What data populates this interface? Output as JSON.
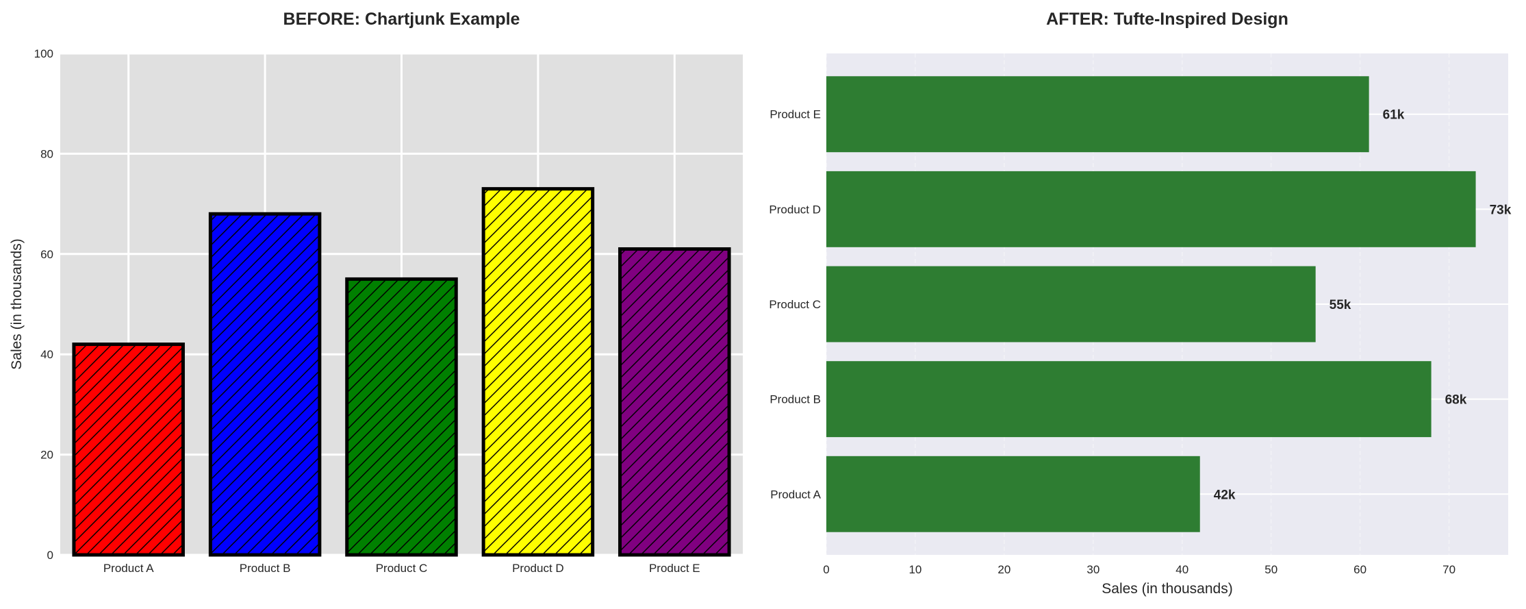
{
  "chart_data": [
    {
      "type": "bar",
      "title": "BEFORE: Chartjunk Example",
      "categories": [
        "Product A",
        "Product B",
        "Product C",
        "Product D",
        "Product E"
      ],
      "values": [
        42,
        68,
        55,
        73,
        61
      ],
      "colors": [
        "#ff0000",
        "#0000ff",
        "#008000",
        "#ffff00",
        "#800080"
      ],
      "edge_color": "#000000",
      "hatch": "diagonal",
      "xlabel": "",
      "ylabel": "Sales (in thousands)",
      "ylim": [
        0,
        100
      ],
      "yticks": [
        0,
        20,
        40,
        60,
        80,
        100
      ],
      "grid": true,
      "background": "#e0e0e0"
    },
    {
      "type": "bar",
      "orientation": "horizontal",
      "title": "AFTER: Tufte-Inspired Design",
      "categories": [
        "Product A",
        "Product B",
        "Product C",
        "Product D",
        "Product E"
      ],
      "values": [
        42,
        68,
        55,
        73,
        61
      ],
      "data_labels": [
        "42k",
        "68k",
        "55k",
        "73k",
        "61k"
      ],
      "color": "#2e7d32",
      "xlabel": "Sales (in thousands)",
      "ylabel": "",
      "xlim": [
        0,
        76.65
      ],
      "xticks": [
        0,
        10,
        20,
        30,
        40,
        50,
        60,
        70
      ],
      "grid": true,
      "background": "#eaeaf2"
    }
  ]
}
